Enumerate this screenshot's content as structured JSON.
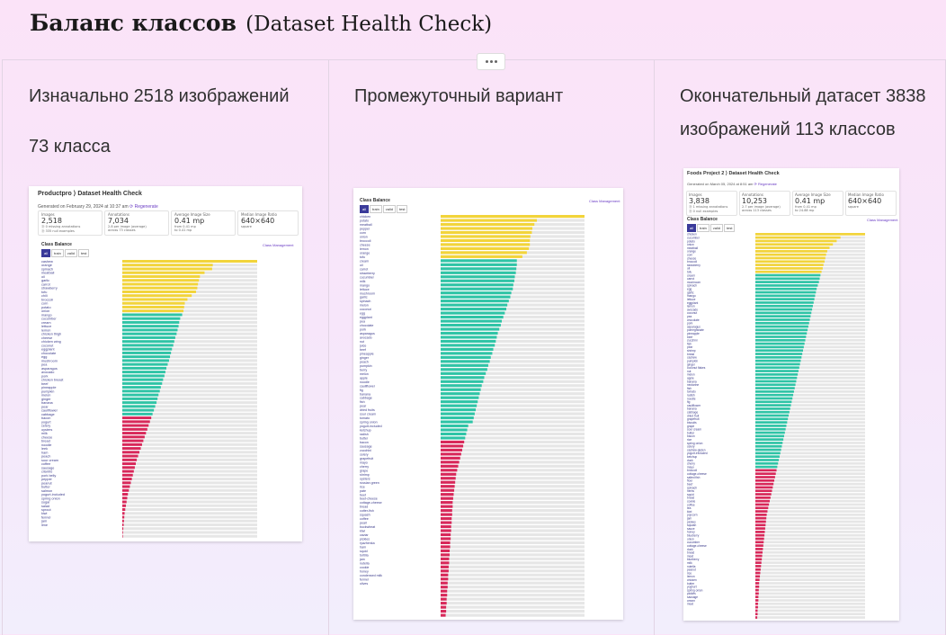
{
  "header": {
    "title_bold": "Баланс классов",
    "title_normal": "(Dataset Health Check)"
  },
  "columns": [
    {
      "text_lines": [
        "Изначально 2518 изображений",
        "73 класса"
      ],
      "screenshot": {
        "title": "Productpro ⟩ Dataset Health Check",
        "generated": "Generated on February 29, 2024 at 10:37 am",
        "regenerate": "⟳ Regenerate",
        "stats": [
          {
            "label": "Images",
            "value": "2,518",
            "sub1": "⓪ 0 missing annotations",
            "sub2": "⓪ 335 null examples"
          },
          {
            "label": "Annotations",
            "value": "7,034",
            "sub1": "2.8 per image (average)",
            "sub2": "across 73 classes"
          },
          {
            "label": "Average Image Size",
            "value": "0.41 mp",
            "sub1": "from 0.41 mp",
            "sub2": "to 0.41 mp"
          },
          {
            "label": "Median Image Ratio",
            "value": "640×640",
            "sub1": "square",
            "sub2": ""
          }
        ],
        "class_balance": "Class Balance",
        "class_mgmt": "Class Management",
        "tabs": [
          "all",
          "train",
          "valid",
          "test"
        ],
        "bar_values": [
          410,
          275,
          273,
          250,
          236,
          233,
          230,
          228,
          224,
          211,
          198,
          190,
          188,
          186,
          182,
          176,
          173,
          171,
          168,
          165,
          161,
          158,
          155,
          151,
          148,
          145,
          142,
          138,
          134,
          131,
          128,
          124,
          121,
          117,
          114,
          110,
          107,
          104,
          100,
          96,
          92,
          88,
          84,
          80,
          76,
          72,
          68,
          64,
          60,
          56,
          52,
          48,
          44,
          41,
          38,
          35,
          32,
          29,
          26,
          23,
          20,
          17,
          15,
          13,
          11,
          9,
          7,
          6,
          5,
          4,
          3,
          2,
          1
        ],
        "labels": [
          "cashew",
          "orange",
          "spinach",
          "meatball",
          "oil",
          "garlic",
          "carrot",
          "strawberry",
          "tofu",
          "chili",
          "broccoli",
          "corn",
          "potato",
          "onion",
          "mango",
          "cucumber",
          "cream",
          "lettuce",
          "lemon",
          "chicken thigh",
          "cheese",
          "chicken wing",
          "coconut",
          "eggplant",
          "chocolate",
          "egg",
          "mushroom",
          "pea",
          "asparagus",
          "avocado",
          "pork",
          "chicken breast",
          "beef",
          "pineapple",
          "pumpkin",
          "melon",
          "ginger",
          "banana",
          "pear",
          "cauliflower",
          "cabbage",
          "bacon",
          "yogurt",
          "celery",
          "oysters",
          "milk",
          "cheese",
          "bread",
          "noodle",
          "leek",
          "ham",
          "peach",
          "sour cream",
          "coffee",
          "sausage",
          "cilantro",
          "pork belly",
          "pepper",
          "peanut",
          "butter",
          "salmon",
          "yogurt-included",
          "spring onion",
          "sugar",
          "salad",
          "sprout",
          "kiwi",
          "fennel",
          "jam",
          "lime",
          "",
          "",
          ""
        ]
      }
    },
    {
      "text_lines": [
        "Промежуточный вариант"
      ],
      "screenshot": {
        "class_balance": "Class Balance",
        "class_mgmt": "Class Management",
        "tabs": [
          "all",
          "train",
          "valid",
          "test"
        ],
        "bar_values": [
          287,
          192,
          187,
          183,
          182,
          179,
          178,
          178,
          176,
          172,
          163,
          152,
          152,
          151,
          150,
          148,
          147,
          145,
          144,
          141,
          139,
          136,
          133,
          131,
          128,
          125,
          122,
          120,
          117,
          114,
          112,
          110,
          108,
          105,
          103,
          100,
          98,
          95,
          93,
          90,
          87,
          85,
          82,
          80,
          78,
          76,
          74,
          72,
          70,
          68,
          66,
          64,
          55,
          53,
          51,
          49,
          47,
          45,
          43,
          41,
          39,
          37,
          35,
          33,
          31,
          30,
          29,
          28,
          27,
          26,
          25,
          24,
          24,
          23,
          23,
          22,
          22,
          21,
          21,
          20,
          20,
          19,
          19,
          18,
          18,
          17,
          17,
          16,
          16,
          15,
          15,
          14,
          14,
          13,
          13,
          12,
          12,
          11,
          11,
          10
        ],
        "labels": [
          "chicken",
          "potato",
          "meatball",
          "pepper",
          "corn",
          "onion",
          "broccoli",
          "cheese",
          "lemon",
          "orange",
          "tofu",
          "cream",
          "oil",
          "carrot",
          "strawberry",
          "cucumber",
          "milk",
          "mango",
          "lettuce",
          "mushroom",
          "garlic",
          "spinach",
          "melon",
          "coconut",
          "egg",
          "eggplant",
          "pea",
          "chocolate",
          "pork",
          "asparagus",
          "avocado",
          "nut",
          "juice",
          "beef",
          "pineapple",
          "ginger",
          "peach",
          "pumpkin",
          "berry",
          "melon",
          "apple",
          "noodle",
          "cauliflower",
          "fig",
          "banana",
          "cabbage",
          "fish",
          "pear",
          "dried fruits",
          "sour cream",
          "tomato",
          "spring onion",
          "yogurt-included",
          "ketchup",
          "radish",
          "butter",
          "bacon",
          "sausage",
          "zucchini",
          "celery",
          "grapefruit",
          "mayo",
          "cherry",
          "grape",
          "shrimp",
          "oysters",
          "russian green",
          "rice",
          "pate",
          "beet",
          "beet-cheese",
          "cottage-cheese",
          "bread",
          "cutter-fish",
          "squash",
          "coffee",
          "pearl",
          "buckwheat",
          "kiwi",
          "caviar",
          "pickles",
          "ryazhenka",
          "ham",
          "squid",
          "tortilla",
          "jam",
          "nutella",
          "cookie",
          "honey",
          "condensed milk",
          "fennel",
          "olives",
          "",
          "",
          "",
          "",
          "",
          "",
          "",
          ""
        ]
      }
    },
    {
      "text_lines": [
        "Окончательный датасет 3838",
        "изображений 113 классов"
      ],
      "screenshot": {
        "title": "Foods Project 2 ⟩ Dataset Health Check",
        "generated": "Generated on March 05, 2024 at 8:51 am",
        "regenerate": "⟳ Regenerate",
        "stats": [
          {
            "label": "Images",
            "value": "3,838",
            "sub1": "⓪ 1 missing annotations",
            "sub2": "⓪ 0 null examples"
          },
          {
            "label": "Annotations",
            "value": "10,253",
            "sub1": "2.7 per image (average)",
            "sub2": "across 113 classes"
          },
          {
            "label": "Average Image Size",
            "value": "0.41 mp",
            "sub1": "from 0.41 mp",
            "sub2": "to 24.88 mp"
          },
          {
            "label": "Median Image Ratio",
            "value": "640×640",
            "sub1": "square",
            "sub2": ""
          }
        ],
        "class_balance": "Class Balance",
        "class_mgmt": "Class Management",
        "tabs": [
          "all",
          "train",
          "valid",
          "test"
        ],
        "bar_values": [
          290,
          225,
          215,
          205,
          196,
          190,
          187,
          185,
          183,
          180,
          178,
          175,
          172,
          170,
          168,
          165,
          162,
          160,
          158,
          156,
          154,
          152,
          150,
          148,
          146,
          144,
          142,
          140,
          138,
          136,
          134,
          132,
          130,
          128,
          126,
          124,
          122,
          120,
          118,
          116,
          114,
          112,
          110,
          108,
          106,
          104,
          102,
          100,
          98,
          96,
          94,
          92,
          90,
          88,
          86,
          84,
          82,
          80,
          78,
          76,
          74,
          72,
          70,
          68,
          66,
          64,
          62,
          60,
          58,
          56,
          54,
          52,
          50,
          48,
          46,
          44,
          42,
          40,
          38,
          36,
          34,
          32,
          30,
          29,
          28,
          27,
          26,
          25,
          24,
          23,
          22,
          21,
          20,
          19,
          18,
          17,
          16,
          15,
          14,
          13,
          12,
          11,
          10,
          10,
          9,
          9,
          8,
          8,
          7,
          7,
          6,
          6,
          5
        ],
        "labels": [
          "chicken",
          "cucumber",
          "potato",
          "onion",
          "meatball",
          "orange",
          "corn",
          "cheese",
          "broccoli",
          "strawberry",
          "oil",
          "tofu",
          "cream",
          "carrot",
          "mushroom",
          "spinach",
          "egg",
          "garlic",
          "mango",
          "lettuce",
          "eggplant",
          "lemon",
          "avocado",
          "coconut",
          "pea",
          "chocolate",
          "pork",
          "asparagus",
          "pomegranate",
          "pineapple",
          "beef",
          "zucchini",
          "fish",
          "pear",
          "shrimp",
          "bread",
          "cashew",
          "pumpkin",
          "ginger",
          "coconut flakes",
          "nut",
          "melon",
          "apple",
          "banana",
          "nectarine",
          "fish",
          "tomato",
          "radish",
          "noodle",
          "fig",
          "cauliflower",
          "banana",
          "cabbage",
          "dried fruit",
          "grapefruit",
          "biscuits",
          "grape",
          "sour cream",
          "butter",
          "bacon",
          "rice",
          "spring onion",
          "celery",
          "cashew-gluten",
          "yogurt-excluded",
          "ketchup",
          "duck",
          "cherry",
          "mayo",
          "broccoli",
          "cottage-cheese",
          "salted fish",
          "flour",
          "beef",
          "spinach",
          "herbs",
          "squid",
          "bread",
          "cookie",
          "coffee",
          "tea",
          "kiwi",
          "popcorn",
          "jam",
          "pickles",
          "squash",
          "sauce",
          "honey",
          "blueberry",
          "onion",
          "cucumber",
          "cottage-cheese",
          "duck",
          "bread",
          "meat",
          "blueberry",
          "milk",
          "nutella",
          "peanut",
          "rice",
          "lemon",
          "chicken",
          "butter",
          "yoghurt",
          "spring onion",
          "pickles",
          "sausage",
          "cream",
          "meat",
          "",
          "",
          "",
          ""
        ]
      }
    }
  ]
}
